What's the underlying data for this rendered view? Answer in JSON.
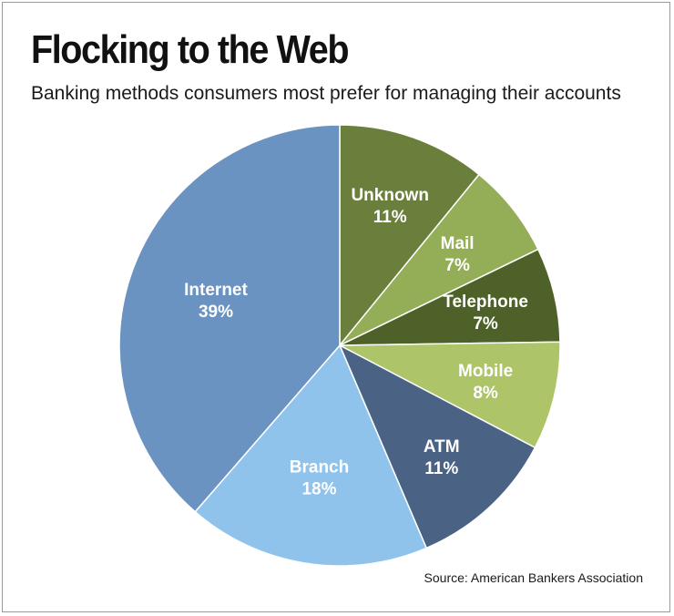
{
  "chart_data": {
    "type": "pie",
    "title": "Flocking to the Web",
    "subtitle": "Banking methods consumers most prefer for managing their accounts",
    "source": "Source: American Bankers Association",
    "slices": [
      {
        "name": "Unknown",
        "value": 11,
        "label": "11%",
        "color": "#6a7f3c"
      },
      {
        "name": "Mail",
        "value": 7,
        "label": "7%",
        "color": "#94ad57"
      },
      {
        "name": "Telephone",
        "value": 7,
        "label": "7%",
        "color": "#4d6128"
      },
      {
        "name": "Mobile",
        "value": 8,
        "label": "8%",
        "color": "#adc469"
      },
      {
        "name": "ATM",
        "value": 11,
        "label": "11%",
        "color": "#4a6283"
      },
      {
        "name": "Branch",
        "value": 18,
        "label": "18%",
        "color": "#8fc3ec"
      },
      {
        "name": "Internet",
        "value": 39,
        "label": "39%",
        "color": "#6a93c2"
      }
    ]
  }
}
